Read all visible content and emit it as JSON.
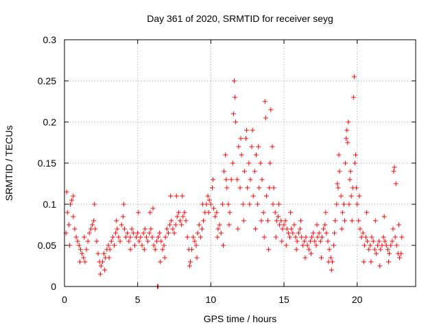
{
  "chart_data": {
    "type": "scatter",
    "title": "Day 361 of 2020, SRMTID for receiver seyg",
    "xlabel": "GPS time / hours",
    "ylabel": "SRMTID / TECUs",
    "xlim": [
      0,
      24
    ],
    "ylim": [
      0,
      0.3
    ],
    "xticks": [
      0,
      5,
      10,
      15,
      20
    ],
    "xtick_labels": [
      "0",
      "5",
      "10",
      "15",
      "20"
    ],
    "yticks": [
      0,
      0.05,
      0.1,
      0.15,
      0.2,
      0.25,
      0.3
    ],
    "ytick_labels": [
      "0",
      "0.05",
      "0.1",
      "0.15",
      "0.2",
      "0.25",
      "0.3"
    ],
    "grid": true,
    "marker": "+",
    "color": "#ff0000",
    "series": [
      {
        "name": "SRMTID",
        "points": [
          [
            0.1,
            0.065
          ],
          [
            0.2,
            0.09
          ],
          [
            0.3,
            0.075
          ],
          [
            0.4,
            0.1
          ],
          [
            0.5,
            0.105
          ],
          [
            0.6,
            0.085
          ],
          [
            0.7,
            0.07
          ],
          [
            0.8,
            0.06
          ],
          [
            0.9,
            0.055
          ],
          [
            1.0,
            0.05
          ],
          [
            1.1,
            0.045
          ],
          [
            1.2,
            0.04
          ],
          [
            1.3,
            0.035
          ],
          [
            1.4,
            0.03
          ],
          [
            1.5,
            0.045
          ],
          [
            1.6,
            0.055
          ],
          [
            1.7,
            0.065
          ],
          [
            1.8,
            0.07
          ],
          [
            1.9,
            0.075
          ],
          [
            2.0,
            0.08
          ],
          [
            2.1,
            0.07
          ],
          [
            2.2,
            0.055
          ],
          [
            2.3,
            0.04
          ],
          [
            2.4,
            0.03
          ],
          [
            2.5,
            0.025
          ],
          [
            2.6,
            0.03
          ],
          [
            2.7,
            0.04
          ],
          [
            2.8,
            0.035
          ],
          [
            2.9,
            0.045
          ],
          [
            3.0,
            0.05
          ],
          [
            3.1,
            0.045
          ],
          [
            3.2,
            0.055
          ],
          [
            3.3,
            0.06
          ],
          [
            3.4,
            0.05
          ],
          [
            3.5,
            0.065
          ],
          [
            3.6,
            0.07
          ],
          [
            3.7,
            0.06
          ],
          [
            3.8,
            0.055
          ],
          [
            3.9,
            0.075
          ],
          [
            4.0,
            0.085
          ],
          [
            4.1,
            0.07
          ],
          [
            4.2,
            0.06
          ],
          [
            4.3,
            0.065
          ],
          [
            4.4,
            0.055
          ],
          [
            4.5,
            0.06
          ],
          [
            4.6,
            0.07
          ],
          [
            4.7,
            0.065
          ],
          [
            4.8,
            0.05
          ],
          [
            4.9,
            0.06
          ],
          [
            5.0,
            0.065
          ],
          [
            5.1,
            0.055
          ],
          [
            5.2,
            0.06
          ],
          [
            5.3,
            0.05
          ],
          [
            5.4,
            0.065
          ],
          [
            5.5,
            0.07
          ],
          [
            5.6,
            0.06
          ],
          [
            5.7,
            0.055
          ],
          [
            5.8,
            0.065
          ],
          [
            5.9,
            0.07
          ],
          [
            6.0,
            0.06
          ],
          [
            6.1,
            0.05
          ],
          [
            6.2,
            0.045
          ],
          [
            6.3,
            0.055
          ],
          [
            6.4,
            0.06
          ],
          [
            6.5,
            0.065
          ],
          [
            6.6,
            0.055
          ],
          [
            6.7,
            0.045
          ],
          [
            6.8,
            0.05
          ],
          [
            6.9,
            0.06
          ],
          [
            7.0,
            0.07
          ],
          [
            7.1,
            0.065
          ],
          [
            7.2,
            0.075
          ],
          [
            7.3,
            0.08
          ],
          [
            7.4,
            0.07
          ],
          [
            7.5,
            0.065
          ],
          [
            7.6,
            0.075
          ],
          [
            7.7,
            0.085
          ],
          [
            7.8,
            0.09
          ],
          [
            7.9,
            0.08
          ],
          [
            8.0,
            0.075
          ],
          [
            8.1,
            0.085
          ],
          [
            8.2,
            0.09
          ],
          [
            8.3,
            0.08
          ],
          [
            8.4,
            0.06
          ],
          [
            8.5,
            0.045
          ],
          [
            8.6,
            0.03
          ],
          [
            8.7,
            0.045
          ],
          [
            8.8,
            0.06
          ],
          [
            8.9,
            0.055
          ],
          [
            9.0,
            0.05
          ],
          [
            9.1,
            0.065
          ],
          [
            9.2,
            0.075
          ],
          [
            9.3,
            0.06
          ],
          [
            9.4,
            0.07
          ],
          [
            9.5,
            0.08
          ],
          [
            9.6,
            0.09
          ],
          [
            9.7,
            0.1
          ],
          [
            9.8,
            0.11
          ],
          [
            9.9,
            0.105
          ],
          [
            10.0,
            0.1
          ],
          [
            10.1,
            0.12
          ],
          [
            10.2,
            0.095
          ],
          [
            10.3,
            0.085
          ],
          [
            10.4,
            0.09
          ],
          [
            10.5,
            0.07
          ],
          [
            10.6,
            0.075
          ],
          [
            10.7,
            0.065
          ],
          [
            10.8,
            0.1
          ],
          [
            10.9,
            0.14
          ],
          [
            11.0,
            0.16
          ],
          [
            11.1,
            0.12
          ],
          [
            11.2,
            0.1
          ],
          [
            11.3,
            0.09
          ],
          [
            11.4,
            0.13
          ],
          [
            11.5,
            0.15
          ],
          [
            11.6,
            0.25
          ],
          [
            11.7,
            0.2
          ],
          [
            11.8,
            0.13
          ],
          [
            11.9,
            0.17
          ],
          [
            12.0,
            0.12
          ],
          [
            12.1,
            0.16
          ],
          [
            12.2,
            0.1
          ],
          [
            12.3,
            0.14
          ],
          [
            12.4,
            0.18
          ],
          [
            12.5,
            0.12
          ],
          [
            12.6,
            0.15
          ],
          [
            12.7,
            0.13
          ],
          [
            12.8,
            0.17
          ],
          [
            12.9,
            0.11
          ],
          [
            13.0,
            0.14
          ],
          [
            13.1,
            0.16
          ],
          [
            13.2,
            0.1
          ],
          [
            13.3,
            0.12
          ],
          [
            13.4,
            0.15
          ],
          [
            13.5,
            0.13
          ],
          [
            13.6,
            0.09
          ],
          [
            13.7,
            0.225
          ],
          [
            13.8,
            0.11
          ],
          [
            13.9,
            0.08
          ],
          [
            14.0,
            0.12
          ],
          [
            14.1,
            0.215
          ],
          [
            14.2,
            0.17
          ],
          [
            14.3,
            0.12
          ],
          [
            14.4,
            0.09
          ],
          [
            14.5,
            0.08
          ],
          [
            14.6,
            0.085
          ],
          [
            14.7,
            0.075
          ],
          [
            14.8,
            0.08
          ],
          [
            14.9,
            0.07
          ],
          [
            15.0,
            0.075
          ],
          [
            15.1,
            0.08
          ],
          [
            15.2,
            0.07
          ],
          [
            15.3,
            0.065
          ],
          [
            15.4,
            0.06
          ],
          [
            15.5,
            0.07
          ],
          [
            15.6,
            0.065
          ],
          [
            15.7,
            0.075
          ],
          [
            15.8,
            0.06
          ],
          [
            15.9,
            0.055
          ],
          [
            16.0,
            0.065
          ],
          [
            16.1,
            0.07
          ],
          [
            16.2,
            0.06
          ],
          [
            16.3,
            0.05
          ],
          [
            16.4,
            0.055
          ],
          [
            16.5,
            0.06
          ],
          [
            16.6,
            0.05
          ],
          [
            16.7,
            0.045
          ],
          [
            16.8,
            0.055
          ],
          [
            16.9,
            0.06
          ],
          [
            17.0,
            0.065
          ],
          [
            17.1,
            0.055
          ],
          [
            17.2,
            0.05
          ],
          [
            17.3,
            0.06
          ],
          [
            17.4,
            0.065
          ],
          [
            17.5,
            0.055
          ],
          [
            17.6,
            0.06
          ],
          [
            17.7,
            0.07
          ],
          [
            17.8,
            0.075
          ],
          [
            17.9,
            0.065
          ],
          [
            18.0,
            0.055
          ],
          [
            18.1,
            0.045
          ],
          [
            18.2,
            0.035
          ],
          [
            18.3,
            0.03
          ],
          [
            18.4,
            0.05
          ],
          [
            18.5,
            0.08
          ],
          [
            18.6,
            0.1
          ],
          [
            18.7,
            0.12
          ],
          [
            18.8,
            0.14
          ],
          [
            18.9,
            0.11
          ],
          [
            19.0,
            0.09
          ],
          [
            19.1,
            0.1
          ],
          [
            19.2,
            0.15
          ],
          [
            19.3,
            0.19
          ],
          [
            19.4,
            0.2
          ],
          [
            19.5,
            0.13
          ],
          [
            19.6,
            0.11
          ],
          [
            19.7,
            0.12
          ],
          [
            19.8,
            0.255
          ],
          [
            19.9,
            0.16
          ],
          [
            20.0,
            0.1
          ],
          [
            20.1,
            0.08
          ],
          [
            20.2,
            0.07
          ],
          [
            20.3,
            0.06
          ],
          [
            20.4,
            0.065
          ],
          [
            20.5,
            0.05
          ],
          [
            20.6,
            0.06
          ],
          [
            20.7,
            0.055
          ],
          [
            20.8,
            0.045
          ],
          [
            20.9,
            0.05
          ],
          [
            21.0,
            0.06
          ],
          [
            21.1,
            0.055
          ],
          [
            21.2,
            0.045
          ],
          [
            21.3,
            0.04
          ],
          [
            21.4,
            0.05
          ],
          [
            21.5,
            0.055
          ],
          [
            21.6,
            0.045
          ],
          [
            21.7,
            0.05
          ],
          [
            21.8,
            0.06
          ],
          [
            21.9,
            0.055
          ],
          [
            22.0,
            0.05
          ],
          [
            22.1,
            0.045
          ],
          [
            22.2,
            0.04
          ],
          [
            22.3,
            0.05
          ],
          [
            22.4,
            0.055
          ],
          [
            22.5,
            0.14
          ],
          [
            22.6,
            0.06
          ],
          [
            22.7,
            0.05
          ],
          [
            22.8,
            0.04
          ],
          [
            22.9,
            0.035
          ],
          [
            23.0,
            0.04
          ],
          [
            0.15,
            0.115
          ],
          [
            0.35,
            0.05
          ],
          [
            0.6,
            0.11
          ],
          [
            1.05,
            0.03
          ],
          [
            1.35,
            0.06
          ],
          [
            2.05,
            0.1
          ],
          [
            2.45,
            0.015
          ],
          [
            2.75,
            0.02
          ],
          [
            3.05,
            0.035
          ],
          [
            3.55,
            0.08
          ],
          [
            4.05,
            0.1
          ],
          [
            4.5,
            0.045
          ],
          [
            5.05,
            0.09
          ],
          [
            5.45,
            0.045
          ],
          [
            5.85,
            0.09
          ],
          [
            6.05,
            0.095
          ],
          [
            6.55,
            0.03
          ],
          [
            6.85,
            0.035
          ],
          [
            7.25,
            0.11
          ],
          [
            7.65,
            0.11
          ],
          [
            8.05,
            0.11
          ],
          [
            8.55,
            0.025
          ],
          [
            9.05,
            0.035
          ],
          [
            9.45,
            0.1
          ],
          [
            9.85,
            0.09
          ],
          [
            10.15,
            0.13
          ],
          [
            10.45,
            0.06
          ],
          [
            10.85,
            0.05
          ],
          [
            11.05,
            0.13
          ],
          [
            11.25,
            0.075
          ],
          [
            11.55,
            0.21
          ],
          [
            11.65,
            0.23
          ],
          [
            11.85,
            0.07
          ],
          [
            12.05,
            0.18
          ],
          [
            12.25,
            0.08
          ],
          [
            12.45,
            0.19
          ],
          [
            12.65,
            0.1
          ],
          [
            12.85,
            0.19
          ],
          [
            13.05,
            0.07
          ],
          [
            13.25,
            0.17
          ],
          [
            13.45,
            0.08
          ],
          [
            13.65,
            0.06
          ],
          [
            13.75,
            0.205
          ],
          [
            13.95,
            0.045
          ],
          [
            14.05,
            0.15
          ],
          [
            14.25,
            0.1
          ],
          [
            14.45,
            0.06
          ],
          [
            14.65,
            0.1
          ],
          [
            14.85,
            0.055
          ],
          [
            15.15,
            0.05
          ],
          [
            15.45,
            0.09
          ],
          [
            15.85,
            0.045
          ],
          [
            16.15,
            0.08
          ],
          [
            16.45,
            0.035
          ],
          [
            16.85,
            0.04
          ],
          [
            17.25,
            0.075
          ],
          [
            17.55,
            0.035
          ],
          [
            17.85,
            0.09
          ],
          [
            18.05,
            0.03
          ],
          [
            18.25,
            0.02
          ],
          [
            18.45,
            0.065
          ],
          [
            18.65,
            0.125
          ],
          [
            18.75,
            0.16
          ],
          [
            18.95,
            0.07
          ],
          [
            19.15,
            0.08
          ],
          [
            19.25,
            0.18
          ],
          [
            19.35,
            0.175
          ],
          [
            19.45,
            0.1
          ],
          [
            19.55,
            0.14
          ],
          [
            19.65,
            0.08
          ],
          [
            19.75,
            0.23
          ],
          [
            19.85,
            0.15
          ],
          [
            19.95,
            0.12
          ],
          [
            20.15,
            0.11
          ],
          [
            20.45,
            0.03
          ],
          [
            20.65,
            0.09
          ],
          [
            20.95,
            0.03
          ],
          [
            21.25,
            0.08
          ],
          [
            21.55,
            0.025
          ],
          [
            21.85,
            0.085
          ],
          [
            22.15,
            0.03
          ],
          [
            22.45,
            0.07
          ],
          [
            22.55,
            0.145
          ],
          [
            22.65,
            0.125
          ],
          [
            22.85,
            0.075
          ],
          [
            23.05,
            0.06
          ],
          [
            6.35,
            0.0
          ],
          [
            6.4,
            0.0
          ]
        ]
      }
    ]
  }
}
